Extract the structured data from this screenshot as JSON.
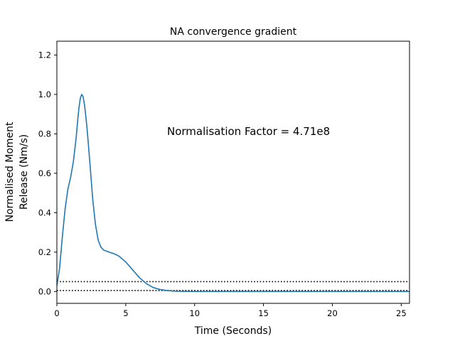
{
  "chart_data": {
    "type": "line",
    "title": "NA convergence gradient",
    "xlabel": "Time (Seconds)",
    "ylabel_lines": [
      "Normalised Moment",
      "Release (Nm/s)"
    ],
    "annotation": "Normalisation Factor = 4.71e8",
    "xlim": [
      0,
      25.6
    ],
    "ylim": [
      -0.06,
      1.27
    ],
    "xticks": [
      0,
      5,
      10,
      15,
      20,
      25
    ],
    "xtick_labels": [
      "0",
      "5",
      "10",
      "15",
      "20",
      "25"
    ],
    "yticks": [
      0.0,
      0.2,
      0.4,
      0.6,
      0.8,
      1.0,
      1.2
    ],
    "ytick_labels": [
      "0.0",
      "0.2",
      "0.4",
      "0.6",
      "0.8",
      "1.0",
      "1.2"
    ],
    "grid": false,
    "series": [
      {
        "color": "#1f77b4",
        "x": [
          0,
          0.2,
          0.4,
          0.6,
          0.8,
          1.0,
          1.2,
          1.4,
          1.5,
          1.6,
          1.7,
          1.8,
          1.9,
          2.0,
          2.1,
          2.2,
          2.4,
          2.6,
          2.8,
          3.0,
          3.2,
          3.4,
          3.6,
          3.8,
          4.0,
          4.2,
          4.5,
          5.0,
          5.5,
          6.0,
          6.5,
          7.0,
          7.5,
          8.0,
          8.5,
          9.0,
          10,
          12,
          15,
          20,
          25.6
        ],
        "y": [
          0.03,
          0.12,
          0.28,
          0.42,
          0.52,
          0.58,
          0.66,
          0.78,
          0.86,
          0.93,
          0.98,
          1.0,
          0.99,
          0.95,
          0.89,
          0.82,
          0.65,
          0.47,
          0.34,
          0.26,
          0.225,
          0.21,
          0.205,
          0.2,
          0.195,
          0.19,
          0.18,
          0.15,
          0.11,
          0.07,
          0.04,
          0.02,
          0.01,
          0.005,
          0.002,
          0.001,
          0.0,
          0.0,
          0.0,
          0.0,
          0.0
        ]
      }
    ],
    "reference_lines": [
      {
        "y": 0.05,
        "style": "dotted",
        "color": "#000000"
      },
      {
        "y": 0.005,
        "style": "dotted",
        "color": "#000000"
      }
    ]
  }
}
